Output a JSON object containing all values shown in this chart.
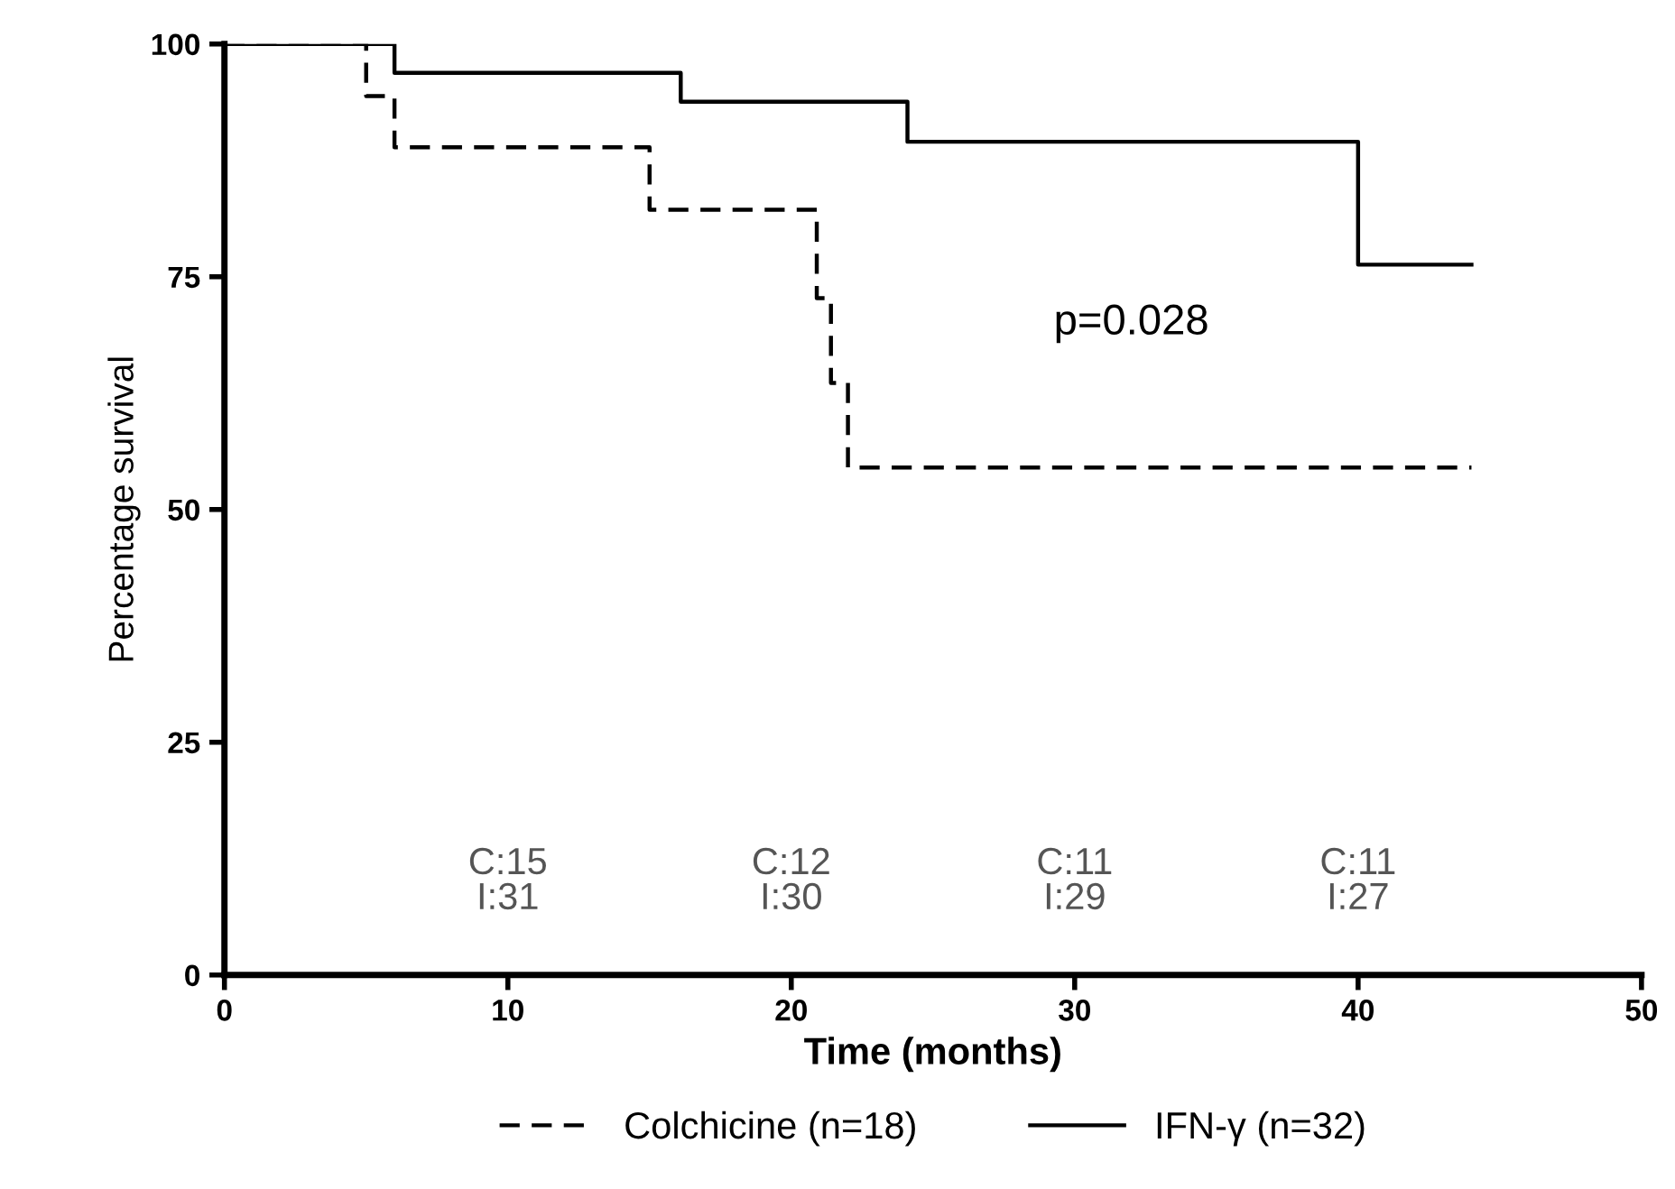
{
  "chart_data": {
    "type": "step",
    "xlabel": "Time (months)",
    "ylabel": "Percentage survival",
    "xlim": [
      0,
      50
    ],
    "ylim": [
      0,
      100
    ],
    "xticks": [
      0,
      10,
      20,
      30,
      40,
      50
    ],
    "yticks": [
      0,
      25,
      50,
      75,
      100
    ],
    "grid": false,
    "legend": "bottom",
    "marker": "none",
    "series": [
      {
        "name": "Colchicine (n=18)",
        "color": "#000000",
        "line_style": "dashed",
        "x": [
          0,
          5,
          6,
          15,
          20.9,
          21.4,
          22,
          44
        ],
        "values": [
          100,
          94.4,
          88.9,
          82.2,
          72.7,
          63.6,
          54.5,
          54.5
        ]
      },
      {
        "name": "IFN-γ (n=32)",
        "color": "#000000",
        "line_style": "solid",
        "x": [
          0,
          6,
          16.1,
          24.1,
          40,
          44
        ],
        "values": [
          100,
          96.9,
          93.8,
          89.5,
          76.3,
          76.3
        ]
      }
    ],
    "annotations": [
      "p=0.028",
      "C:15\nI:31",
      "C:12\nI:30",
      "C:11\nI:29",
      "C:11\nI:27"
    ]
  }
}
